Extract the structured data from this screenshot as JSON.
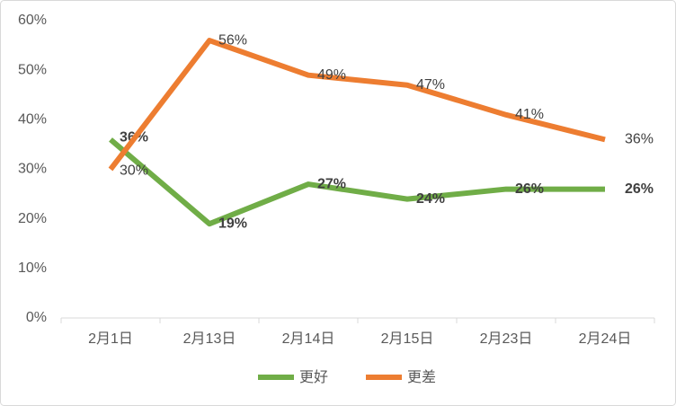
{
  "chart_data": {
    "type": "line",
    "categories": [
      "2月1日",
      "2月13日",
      "2月14日",
      "2月15日",
      "2月23日",
      "2月24日"
    ],
    "series": [
      {
        "name": "更好",
        "color": "#70ad47",
        "values": [
          36,
          19,
          27,
          24,
          26,
          26
        ],
        "value_labels": [
          "36%",
          "19%",
          "27%",
          "24%",
          "26%",
          "26%"
        ],
        "bold_labels": true
      },
      {
        "name": "更差",
        "color": "#ed7d31",
        "values": [
          30,
          56,
          49,
          47,
          41,
          36
        ],
        "value_labels": [
          "30%",
          "56%",
          "49%",
          "47%",
          "41%",
          "36%"
        ],
        "bold_labels": false
      }
    ],
    "ylim": [
      0,
      60
    ],
    "yticks": [
      {
        "value": 0,
        "label": "0%"
      },
      {
        "value": 10,
        "label": "10%"
      },
      {
        "value": 20,
        "label": "20%"
      },
      {
        "value": 30,
        "label": "30%"
      },
      {
        "value": 40,
        "label": "40%"
      },
      {
        "value": 50,
        "label": "50%"
      },
      {
        "value": 60,
        "label": "60%"
      }
    ],
    "grid": false,
    "legend": "bottom"
  }
}
